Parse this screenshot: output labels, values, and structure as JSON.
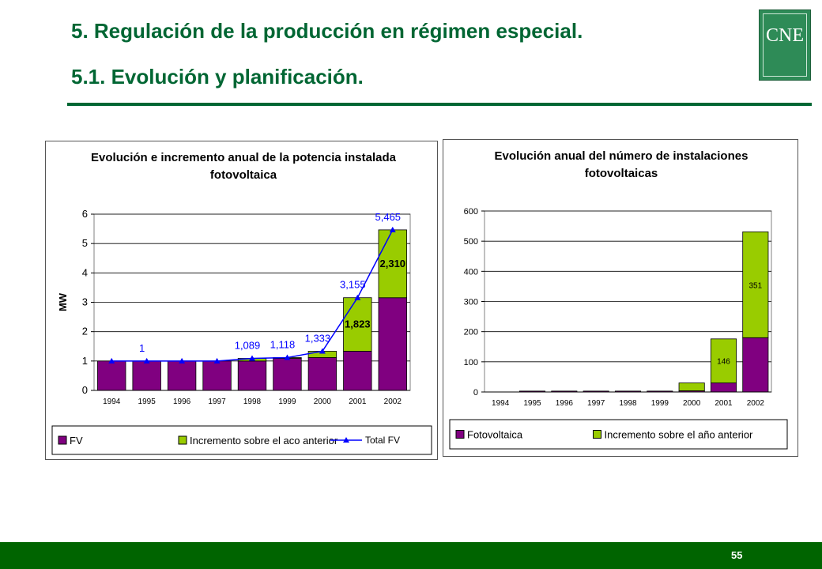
{
  "header": {
    "title": "5. Regulación de la producción en régimen especial.",
    "subtitle": "5.1. Evolución y planificación.",
    "logo": "CNE"
  },
  "chart_data": [
    {
      "type": "bar",
      "stacked": true,
      "title": "Evolución e incremento anual de la potencia instalada fotovoltaica",
      "ylabel": "MW",
      "categories": [
        "1994",
        "1995",
        "1996",
        "1997",
        "1998",
        "1999",
        "2000",
        "2001",
        "2002"
      ],
      "series": [
        {
          "name": "FV",
          "color": "#800080",
          "values": [
            1,
            1,
            1,
            1,
            1,
            1.089,
            1.118,
            1.333,
            3.155
          ]
        },
        {
          "name": "Incremento sobre el aco anterior",
          "color": "#99cc00",
          "values": [
            0,
            0,
            0,
            0,
            0.089,
            0.029,
            0.215,
            1.823,
            2.31
          ],
          "value_labels": [
            null,
            null,
            null,
            null,
            null,
            null,
            null,
            "1,823",
            "2,310"
          ]
        },
        {
          "name": "Total FV",
          "type": "line",
          "color": "#0000ff",
          "values": [
            1,
            1,
            1,
            1,
            1.089,
            1.118,
            1.333,
            3.155,
            5.465
          ],
          "value_labels": [
            null,
            "1",
            null,
            null,
            "1,089",
            "1,118",
            "1,333",
            "3,155",
            "5,465"
          ]
        }
      ],
      "ylim": [
        0,
        6
      ],
      "yticks": [
        0,
        1,
        2,
        3,
        4,
        5,
        6
      ],
      "grid": true,
      "legend": "bottom"
    },
    {
      "type": "bar",
      "stacked": true,
      "title": "Evolución anual del número de instalaciones fotovoltaicas",
      "categories": [
        "1994",
        "1995",
        "1996",
        "1997",
        "1998",
        "1999",
        "2000",
        "2001",
        "2002"
      ],
      "series": [
        {
          "name": "Fotovoltaica",
          "color": "#800080",
          "values": [
            0,
            3,
            3,
            3,
            3,
            3,
            4,
            30,
            180
          ]
        },
        {
          "name": "Incremento sobre el año anterior",
          "color": "#99cc00",
          "values": [
            0,
            0,
            0,
            0,
            0,
            0,
            26,
            146,
            351
          ],
          "value_labels": [
            null,
            null,
            null,
            null,
            null,
            null,
            null,
            "146",
            "351"
          ]
        }
      ],
      "ylim": [
        0,
        600
      ],
      "yticks": [
        0,
        100,
        200,
        300,
        400,
        500,
        600
      ],
      "grid": true,
      "legend": "bottom"
    }
  ],
  "footer": {
    "page": "55"
  }
}
